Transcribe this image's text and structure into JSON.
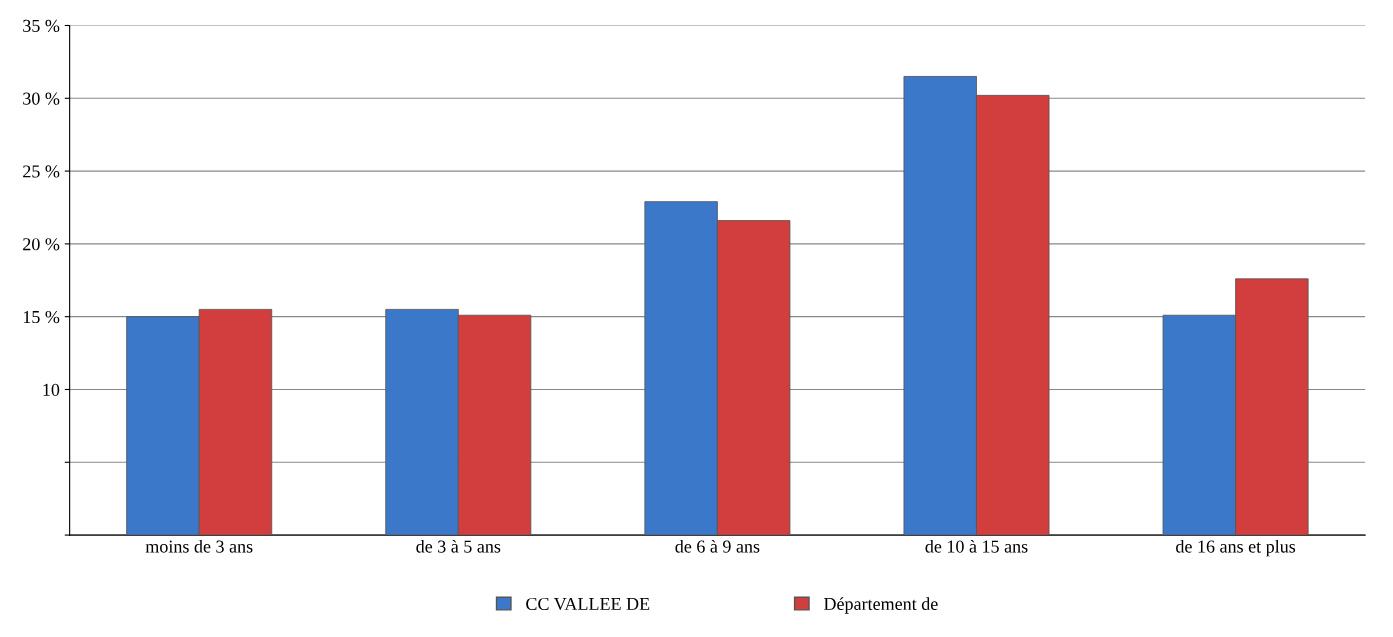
{
  "chart_data": {
    "type": "bar",
    "categories": [
      "moins de 3 ans",
      "de 3 à 5 ans",
      "de 6 à 9 ans",
      "de 10 à 15 ans",
      "de 16 ans et plus"
    ],
    "series": [
      {
        "name": "CC VALLEE DE",
        "color": "#3b78c9",
        "values": [
          15.0,
          15.5,
          22.9,
          31.5,
          15.1
        ]
      },
      {
        "name": "Département de",
        "color": "#d23d3d",
        "values": [
          15.5,
          15.1,
          21.6,
          30.2,
          17.6
        ]
      }
    ],
    "ylim": [
      0,
      35
    ],
    "yticks": [
      {
        "value": 0,
        "label": null
      },
      {
        "value": 5,
        "label": null
      },
      {
        "value": 10,
        "label": "10"
      },
      {
        "value": 15,
        "label": "15 %"
      },
      {
        "value": 20,
        "label": "20 %"
      },
      {
        "value": 25,
        "label": "25 %"
      },
      {
        "value": 30,
        "label": "30 %"
      },
      {
        "value": 35,
        "label": "35 %"
      }
    ],
    "grid": "y",
    "legend": "bottom"
  }
}
